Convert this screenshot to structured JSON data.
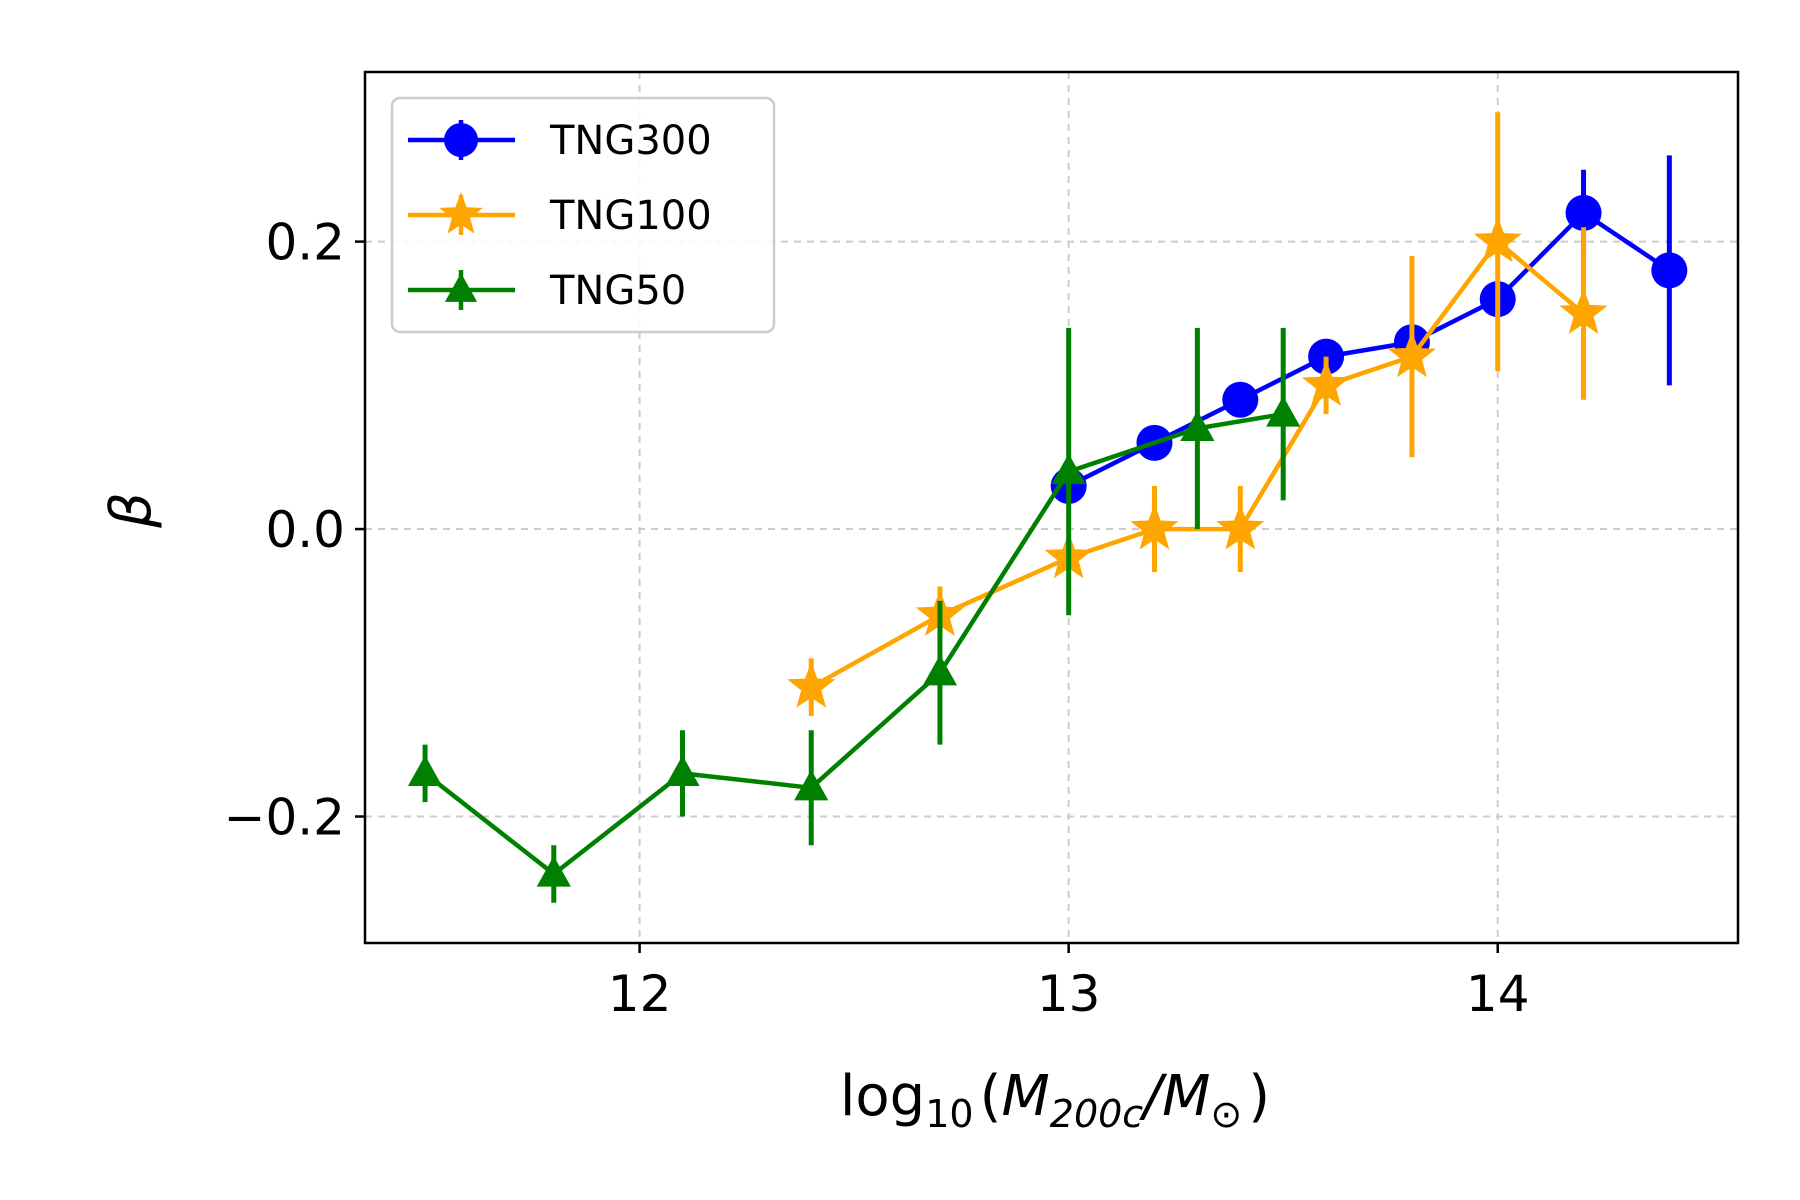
{
  "chart_data": {
    "type": "line",
    "title": "",
    "xlabel": "log10(M200c/M⊙)",
    "xlabel_parts": {
      "log": "log",
      "sub10": "10",
      "open": "(",
      "M1": "M",
      "sub1": "200c",
      "slash": "/",
      "M2": "M",
      "sub2": "⊙",
      "close": ")"
    },
    "ylabel": "β",
    "xlim": [
      11.36,
      14.56
    ],
    "ylim": [
      -0.288,
      0.318
    ],
    "xticks": [
      12,
      13,
      14
    ],
    "xtick_labels": [
      "12",
      "13",
      "14"
    ],
    "yticks": [
      -0.2,
      0.0,
      0.2
    ],
    "ytick_labels": [
      "−0.2",
      "0.0",
      "0.2"
    ],
    "grid": true,
    "legend_position": "top-left",
    "series": [
      {
        "name": "TNG300",
        "color": "#0000ff",
        "marker": "circle",
        "x": [
          13.0,
          13.2,
          13.4,
          13.6,
          13.8,
          14.0,
          14.2,
          14.4
        ],
        "y": [
          0.03,
          0.06,
          0.09,
          0.12,
          0.13,
          0.16,
          0.22,
          0.18
        ],
        "yerr_low": [
          0.0,
          0.0,
          0.0,
          0.0,
          0.0,
          0.0,
          0.03,
          0.08
        ],
        "yerr_high": [
          0.0,
          0.0,
          0.0,
          0.0,
          0.0,
          0.0,
          0.03,
          0.08
        ]
      },
      {
        "name": "TNG100",
        "color": "#ffa500",
        "marker": "star",
        "x": [
          12.4,
          12.7,
          13.0,
          13.2,
          13.4,
          13.6,
          13.8,
          14.0,
          14.2
        ],
        "y": [
          -0.11,
          -0.06,
          -0.02,
          0.0,
          0.0,
          0.1,
          0.12,
          0.2,
          0.15
        ],
        "yerr_low": [
          0.02,
          0.02,
          0.0,
          0.03,
          0.03,
          0.02,
          0.07,
          0.09,
          0.06
        ],
        "yerr_high": [
          0.02,
          0.02,
          0.0,
          0.03,
          0.03,
          0.02,
          0.07,
          0.09,
          0.06
        ]
      },
      {
        "name": "TNG50",
        "color": "#008000",
        "marker": "triangle",
        "x": [
          11.5,
          11.8,
          12.1,
          12.4,
          12.7,
          13.0,
          13.3,
          13.5
        ],
        "y": [
          -0.17,
          -0.24,
          -0.17,
          -0.18,
          -0.1,
          0.04,
          0.07,
          0.08
        ],
        "yerr_low": [
          0.02,
          0.02,
          0.03,
          0.04,
          0.05,
          0.1,
          0.07,
          0.06
        ],
        "yerr_high": [
          0.02,
          0.02,
          0.03,
          0.04,
          0.05,
          0.1,
          0.07,
          0.06
        ]
      }
    ]
  }
}
